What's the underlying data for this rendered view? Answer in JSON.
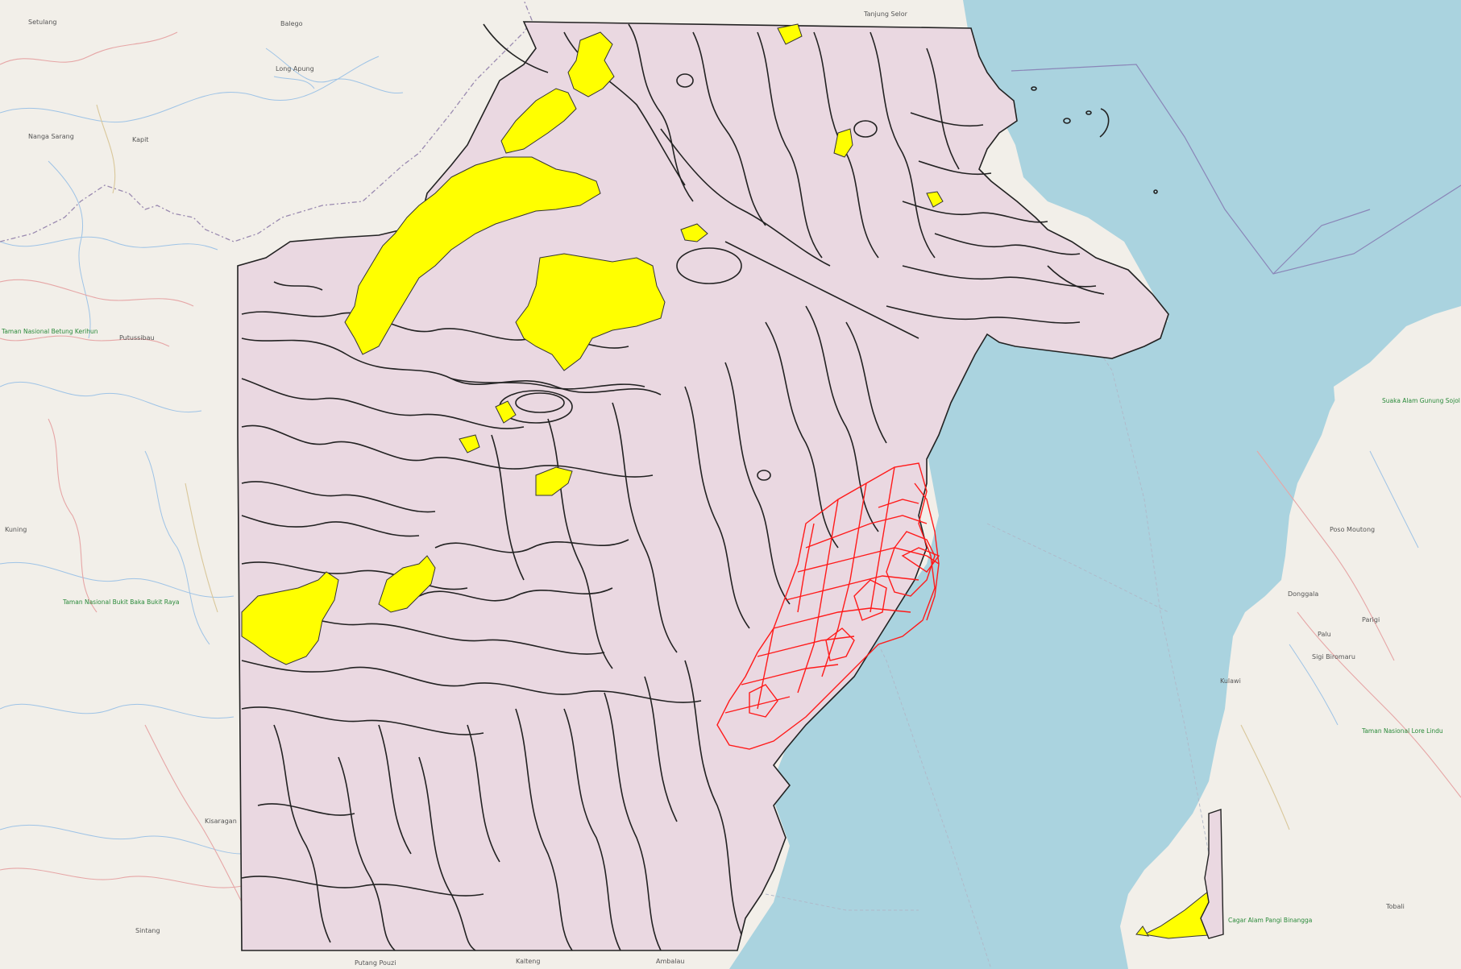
{
  "basemap": {
    "colors": {
      "land": "#f2efe9",
      "sea": "#aad3df",
      "study_area": "#ead8e1",
      "outline": "#222222",
      "highlight_fill": "#ffff00",
      "alert_outline": "#ff1a1a",
      "park_label": "#2a8a3a"
    },
    "labels": [
      {
        "id": "balego",
        "text": "Balego"
      },
      {
        "id": "tanjung-selor",
        "text": "Tanjung Selor"
      },
      {
        "id": "setulang",
        "text": "Setulang"
      },
      {
        "id": "long-apung",
        "text": "Long Apung"
      },
      {
        "id": "tanjung-sarang",
        "text": "Nanga Sarang"
      },
      {
        "id": "kapit",
        "text": "Kapit"
      },
      {
        "id": "putussibau",
        "text": "Putussibau"
      },
      {
        "id": "kuning",
        "text": "Kuning"
      },
      {
        "id": "kisaragan",
        "text": "Kisaragan"
      },
      {
        "id": "sintang",
        "text": "Sintang"
      },
      {
        "id": "putang-pouzi",
        "text": "Putang Pouzi"
      },
      {
        "id": "kalteng",
        "text": "Kalteng"
      },
      {
        "id": "ambalau",
        "text": "Ambalau"
      },
      {
        "id": "palu",
        "text": "Palu"
      },
      {
        "id": "parigi",
        "text": "Parigi"
      },
      {
        "id": "donggala",
        "text": "Donggala"
      },
      {
        "id": "sigi",
        "text": "Sigi Biromaru"
      },
      {
        "id": "kulawi",
        "text": "Kulawi"
      },
      {
        "id": "poso",
        "text": "Poso Moutong"
      },
      {
        "id": "tobali",
        "text": "Tobali"
      }
    ],
    "parks": [
      {
        "id": "betung",
        "text": "Taman Nasional Betung Kerihun"
      },
      {
        "id": "bukit-baka",
        "text": "Taman Nasional Bukit Baka Bukit Raya"
      },
      {
        "id": "lore-lindu",
        "text": "Taman Nasional Lore Lindu"
      },
      {
        "id": "gunung-sojol",
        "text": "Suaka Alam Gunung Sojol"
      },
      {
        "id": "tanjung-api",
        "text": "Cagar Alam Pangi Binangga"
      }
    ]
  }
}
